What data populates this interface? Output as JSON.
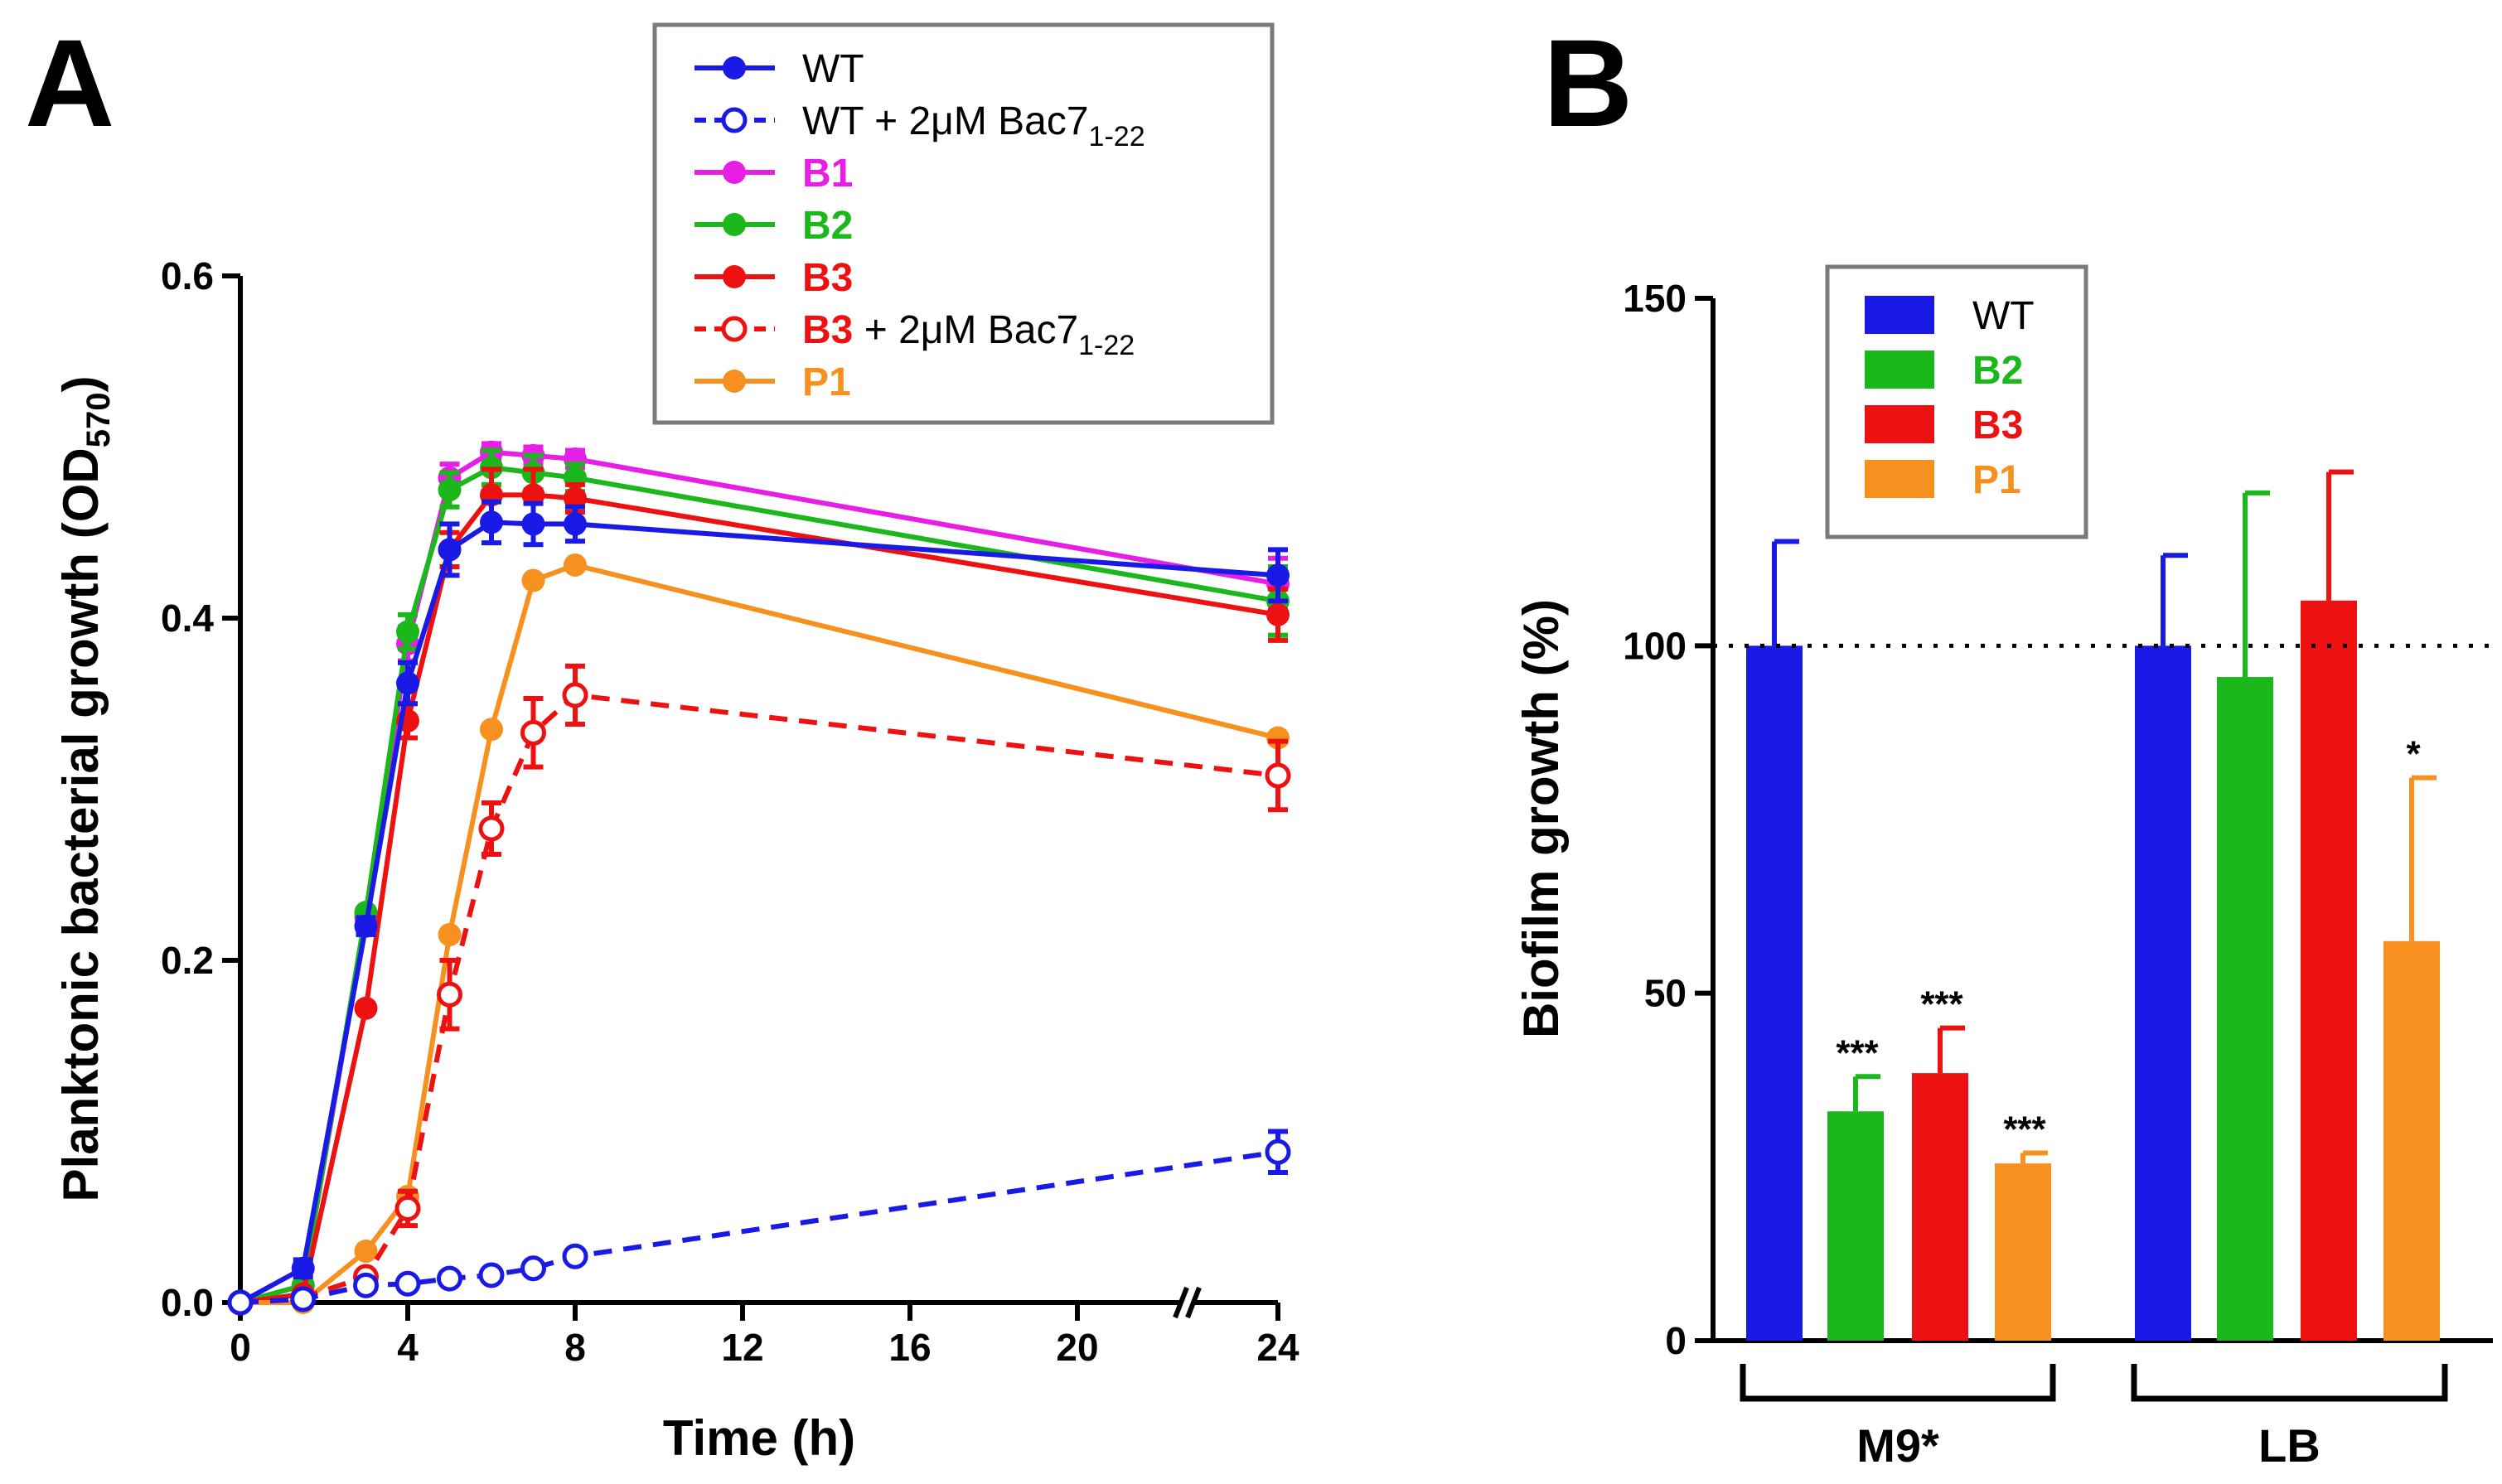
{
  "chart_data": [
    {
      "panel": "A",
      "type": "line",
      "xlabel": "Time (h)",
      "ylabel": "Planktonic bacterial growth (OD",
      "ylabel_sub": "570",
      "ylabel_end": ")",
      "xlim": [
        0,
        24
      ],
      "ylim": [
        0,
        0.6
      ],
      "x_ticks": [
        0,
        4,
        8,
        12,
        16,
        20,
        24
      ],
      "y_ticks": [
        0.0,
        0.2,
        0.4,
        0.6
      ],
      "y_tick_labels": [
        "0.0",
        "0.2",
        "0.4",
        "0.6"
      ],
      "x_axis_break": true,
      "legend": {
        "position": "top",
        "entries": [
          {
            "name": "WT",
            "prefix": "",
            "suffix": "",
            "sub": ""
          },
          {
            "name": "WT",
            "prefix": "",
            "suffix": " + 2μM Bac7",
            "sub": "1-22"
          },
          {
            "name": "B1",
            "prefix": "",
            "suffix": "",
            "sub": ""
          },
          {
            "name": "B2",
            "prefix": "",
            "suffix": "",
            "sub": ""
          },
          {
            "name": "B3",
            "prefix": "",
            "suffix": "",
            "sub": ""
          },
          {
            "name": "B3",
            "prefix": "",
            "suffix": " + 2μM Bac7",
            "sub": "1-22"
          },
          {
            "name": "P1",
            "prefix": "",
            "suffix": "",
            "sub": ""
          }
        ]
      },
      "x": [
        0,
        1.5,
        3,
        4,
        5,
        6,
        7,
        8,
        24
      ],
      "series": [
        {
          "name": "B1",
          "color": "#e61ee6",
          "open": false,
          "dashed": false,
          "values": [
            0.0,
            0.01,
            0.225,
            0.385,
            0.482,
            0.497,
            0.495,
            0.493,
            0.42
          ],
          "errors": [
            0,
            0,
            0,
            0.01,
            0.008,
            0.005,
            0.005,
            0.005,
            0.015
          ]
        },
        {
          "name": "B2",
          "color": "#1ab81a",
          "open": false,
          "dashed": false,
          "values": [
            0.0,
            0.01,
            0.228,
            0.392,
            0.475,
            0.488,
            0.485,
            0.482,
            0.41
          ],
          "errors": [
            0,
            0,
            0,
            0.01,
            0.01,
            0.01,
            0.01,
            0.008,
            0.02
          ]
        },
        {
          "name": "B3",
          "color": "#ee1111",
          "open": false,
          "dashed": false,
          "values": [
            0.0,
            0.005,
            0.172,
            0.34,
            0.44,
            0.472,
            0.472,
            0.47,
            0.402
          ],
          "errors": [
            0,
            0,
            0,
            0.01,
            0.01,
            0.015,
            0.015,
            0.008,
            0.015
          ]
        },
        {
          "name": "WT",
          "color": "#1a1ae6",
          "open": false,
          "dashed": false,
          "values": [
            0.0,
            0.02,
            0.22,
            0.362,
            0.44,
            0.456,
            0.455,
            0.455,
            0.425
          ],
          "errors": [
            0,
            0.005,
            0.005,
            0.012,
            0.015,
            0.012,
            0.012,
            0.01,
            0.015
          ]
        },
        {
          "name": "P1",
          "color": "#f7901e",
          "open": false,
          "dashed": false,
          "values": [
            0.0,
            0.0,
            0.03,
            0.062,
            0.215,
            0.335,
            0.422,
            0.431,
            0.33
          ],
          "errors": [
            0,
            0,
            0,
            0,
            0,
            0,
            0,
            0,
            0
          ]
        },
        {
          "name": "B3 + 2μM Bac7 1-22",
          "color": "#ee1111",
          "open": true,
          "dashed": true,
          "values": [
            0.0,
            0.003,
            0.015,
            0.055,
            0.18,
            0.277,
            0.333,
            0.355,
            0.308
          ],
          "errors": [
            0,
            0,
            0,
            0.01,
            0.02,
            0.015,
            0.02,
            0.017,
            0.02
          ]
        },
        {
          "name": "WT + 2μM Bac7 1-22",
          "color": "#1a1ae6",
          "open": true,
          "dashed": true,
          "values": [
            0.0,
            0.002,
            0.01,
            0.011,
            0.014,
            0.016,
            0.02,
            0.027,
            0.088
          ],
          "errors": [
            0,
            0,
            0,
            0,
            0,
            0,
            0,
            0,
            0.012
          ]
        }
      ]
    },
    {
      "panel": "B",
      "type": "bar",
      "ylabel": "Biofilm growth (%)",
      "ylim": [
        0,
        150
      ],
      "y_ticks": [
        0,
        50,
        100,
        150
      ],
      "y_tick_labels": [
        "0",
        "50",
        "100",
        "150"
      ],
      "reference_line": 100,
      "legend": {
        "position": "top-left",
        "entries": [
          "WT",
          "B2",
          "B3",
          "P1"
        ]
      },
      "series_colors": {
        "WT": "#1a1ae6",
        "B2": "#1ab81a",
        "B3": "#ee1111",
        "P1": "#f7901e"
      },
      "groups": [
        {
          "name": "M9*",
          "bars": [
            {
              "series": "WT",
              "value": 100,
              "error": 15,
              "sig": ""
            },
            {
              "series": "B2",
              "value": 33,
              "error": 5,
              "sig": "***"
            },
            {
              "series": "B3",
              "value": 38.5,
              "error": 6.5,
              "sig": "***"
            },
            {
              "series": "P1",
              "value": 25.5,
              "error": 1.5,
              "sig": "***"
            }
          ]
        },
        {
          "name": "LB",
          "bars": [
            {
              "series": "WT",
              "value": 100,
              "error": 13,
              "sig": ""
            },
            {
              "series": "B2",
              "value": 95.5,
              "error": 26.5,
              "sig": ""
            },
            {
              "series": "B3",
              "value": 106.5,
              "error": 18.5,
              "sig": ""
            },
            {
              "series": "P1",
              "value": 57.5,
              "error": 23.5,
              "sig": "*"
            }
          ]
        }
      ]
    }
  ]
}
